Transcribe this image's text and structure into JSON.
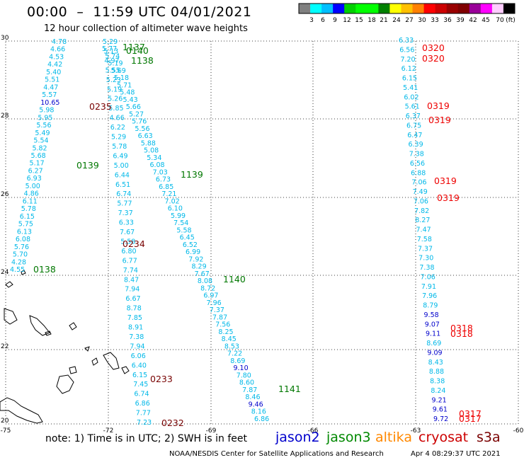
{
  "title": "00:00  –  11:59 UTC 04/01/2021",
  "subtitle": "12 hour collection of altimeter wave heights",
  "colorbar": {
    "colors": [
      "#808080",
      "#00ffff",
      "#00bfff",
      "#0000ff",
      "#00d000",
      "#00ff00",
      "#00ff00",
      "#008000",
      "#ffff00",
      "#ffc000",
      "#ff8000",
      "#ff0000",
      "#cc0000",
      "#990000",
      "#800000",
      "#990099",
      "#ff00ff",
      "#ffccff",
      "#000000"
    ],
    "labels": [
      "3",
      "6",
      "9",
      "12",
      "15",
      "18",
      "21",
      "24",
      "27",
      "30",
      "33",
      "36",
      "39",
      "42",
      "45",
      "70"
    ],
    "unit": "(ft)"
  },
  "axes": {
    "lat_labels": [
      "30",
      "28",
      "26",
      "24",
      "22",
      "20"
    ],
    "lon_labels": [
      "-75",
      "-72",
      "-69",
      "-66",
      "-63",
      "-60"
    ]
  },
  "footer": {
    "note": "note:  1) Time is in UTC;  2) SWH is in feet",
    "credit": "NOAA/NESDIS Center for Satellite Applications and Research",
    "stamp": "Apr  4 08:29:37 UTC 2021"
  },
  "satellites": [
    {
      "name": "jason2",
      "color": "#0000cc"
    },
    {
      "name": "jason3",
      "color": "#008800"
    },
    {
      "name": "altika",
      "color": "#ff8800"
    },
    {
      "name": "cryosat",
      "color": "#cc0000"
    },
    {
      "name": "s3a",
      "color": "#7a0000"
    }
  ],
  "tracks": [
    {
      "values": [
        "4.78",
        "4.66",
        "4.53",
        "4.42",
        "5.40",
        "5.51",
        "4.47",
        "5.57",
        "10.65",
        "5.98",
        "5.95",
        "5.56",
        "5.49",
        "5.54",
        "5.82",
        "5.68",
        "5.17",
        "6.27",
        "6.93",
        "5.00",
        "4.86",
        "6.11",
        "5.78",
        "6.15",
        "5.75",
        "6.13",
        "6.08",
        "5.76",
        "5.70",
        "4.28",
        "4.55"
      ]
    },
    {
      "values": [
        "5.29",
        "5.13",
        "4.97",
        "5.55",
        "5.23",
        "5.19",
        "5.26",
        "5.85",
        "4.66",
        "6.22",
        "5.29",
        "5.78",
        "6.49",
        "5.00",
        "6.44",
        "6.51",
        "6.74",
        "5.77",
        "7.37",
        "6.33",
        "7.67",
        "5.58",
        "6.80",
        "6.77",
        "7.74",
        "8.47",
        "7.94",
        "6.67",
        "8.78",
        "7.85",
        "8.91",
        "7.38",
        "7.94",
        "6.06",
        "6.40",
        "6.15",
        "7.45",
        "6.74",
        "6.86",
        "7.77",
        "7.23"
      ]
    },
    {
      "values": [
        "5.77",
        "5.74",
        "5.19",
        "5.69",
        "5.18",
        "5.71",
        "5.48",
        "5.43",
        "5.66",
        "5.27",
        "5.76",
        "5.56",
        "6.63",
        "5.88",
        "5.08",
        "5.34",
        "6.08",
        "7.03",
        "6.73",
        "6.85",
        "7.21",
        "7.02",
        "6.10",
        "5.99",
        "7.54",
        "5.58",
        "6.45",
        "6.52",
        "6.99",
        "7.92",
        "8.29",
        "7.67",
        "8.08",
        "8.72",
        "6.97",
        "7.96",
        "7.37",
        "7.87",
        "7.56",
        "8.25",
        "8.45",
        "8.53",
        "7.22",
        "8.69",
        "9.10",
        "7.80",
        "8.60",
        "7.87",
        "8.46",
        "9.46",
        "8.16",
        "6.86"
      ]
    },
    {
      "values": [
        "6.33",
        "6.56",
        "7.20",
        "6.12",
        "6.15",
        "5.41",
        "6.02",
        "5.61",
        "6.37",
        "6.75",
        "6.47",
        "6.39",
        "7.38",
        "6.56",
        "6.88",
        "7.06",
        "7.49",
        "7.06",
        "7.82",
        "8.27",
        "7.47",
        "7.58",
        "7.37",
        "7.30",
        "7.38",
        "7.06",
        "7.91",
        "7.96",
        "8.79",
        "9.58",
        "9.07",
        "9.11",
        "8.69",
        "9.09",
        "8.43",
        "8.88",
        "8.38",
        "8.24",
        "9.21",
        "9.61",
        "9.72"
      ]
    }
  ],
  "time_labels": [
    {
      "text": "1137",
      "color": "#007700"
    },
    {
      "text": "0140",
      "color": "#007700"
    },
    {
      "text": "1138",
      "color": "#007700"
    },
    {
      "text": "0235",
      "color": "#770000"
    },
    {
      "text": "0139",
      "color": "#007700"
    },
    {
      "text": "1139",
      "color": "#007700"
    },
    {
      "text": "0234",
      "color": "#770000"
    },
    {
      "text": "0138",
      "color": "#007700"
    },
    {
      "text": "1140",
      "color": "#007700"
    },
    {
      "text": "0233",
      "color": "#770000"
    },
    {
      "text": "1141",
      "color": "#007700"
    },
    {
      "text": "0232",
      "color": "#770000"
    },
    {
      "text": "0320",
      "color": "#ee0000"
    },
    {
      "text": "0320",
      "color": "#ee0000"
    },
    {
      "text": "0319",
      "color": "#ee0000"
    },
    {
      "text": "0319",
      "color": "#ee0000"
    },
    {
      "text": "0319",
      "color": "#ee0000"
    },
    {
      "text": "0319",
      "color": "#ee0000"
    },
    {
      "text": "0318",
      "color": "#ee0000"
    },
    {
      "text": "0318",
      "color": "#ee0000"
    },
    {
      "text": "0317",
      "color": "#ee0000"
    },
    {
      "text": "0317",
      "color": "#ee0000"
    }
  ]
}
